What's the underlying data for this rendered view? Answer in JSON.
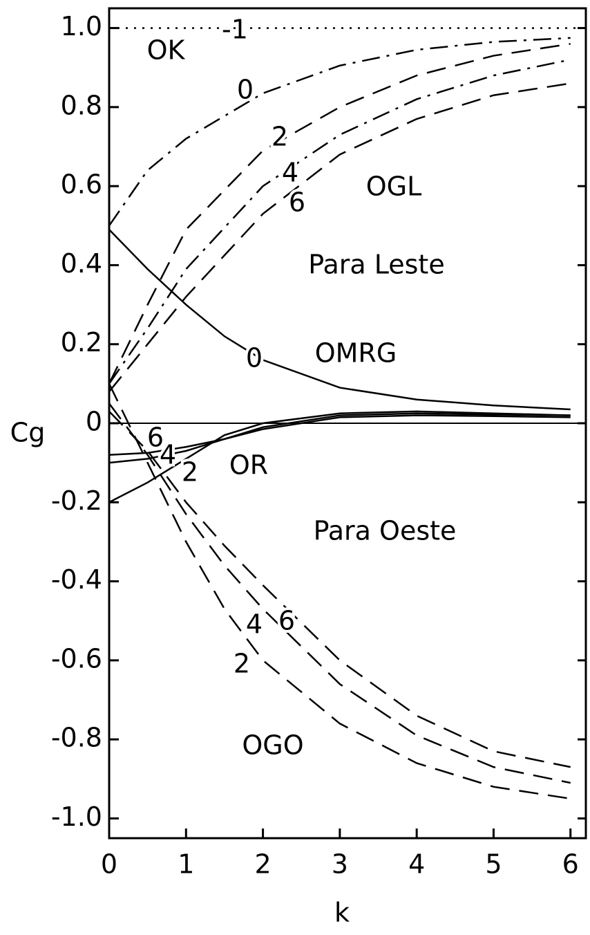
{
  "chart_data": {
    "type": "line",
    "xlabel": "k",
    "ylabel": "Cg",
    "xlim": [
      0,
      6.2
    ],
    "ylim": [
      -1.05,
      1.05
    ],
    "xticks": [
      0,
      1,
      2,
      3,
      4,
      5,
      6
    ],
    "yticks": [
      {
        "value": 1,
        "label": "1.0"
      },
      0.8,
      0.6,
      0.4,
      0.2,
      0,
      -0.2,
      -0.4,
      -0.6,
      -0.8,
      {
        "value": -1,
        "label": "-1.0"
      }
    ],
    "annotations": [
      "OK",
      "OGL",
      "Para Leste",
      "OMRG",
      "OR",
      "Para Oeste",
      "OGO"
    ],
    "series": [
      {
        "name": "-1",
        "color": "#000",
        "style": "dotted",
        "x": [
          0,
          6.2
        ],
        "values": [
          1,
          1
        ]
      },
      {
        "name": "0",
        "color": "#000",
        "style": "dashdot",
        "x": [
          0,
          0.5,
          1,
          2,
          3,
          4,
          5,
          6
        ],
        "values": [
          0.5,
          0.64,
          0.72,
          0.835,
          0.905,
          0.945,
          0.965,
          0.975
        ]
      },
      {
        "name": "2",
        "color": "#000",
        "style": "dashed",
        "x": [
          0,
          0.5,
          1,
          2,
          3,
          4,
          5,
          6
        ],
        "values": [
          0.1,
          0.3,
          0.49,
          0.69,
          0.8,
          0.88,
          0.93,
          0.96
        ]
      },
      {
        "name": "4",
        "color": "#000",
        "style": "dashdot",
        "x": [
          0,
          0.5,
          1,
          2,
          3,
          4,
          5,
          6
        ],
        "values": [
          0.1,
          0.24,
          0.39,
          0.6,
          0.73,
          0.82,
          0.88,
          0.92
        ]
      },
      {
        "name": "6",
        "color": "#000",
        "style": "dashed",
        "x": [
          0,
          0.5,
          1,
          2,
          3,
          4,
          5,
          6
        ],
        "values": [
          0.08,
          0.2,
          0.32,
          0.53,
          0.68,
          0.77,
          0.83,
          0.86
        ]
      },
      {
        "name": "0",
        "color": "#000",
        "style": "solid",
        "x": [
          0,
          0.5,
          1,
          1.5,
          2,
          3,
          4,
          5,
          6
        ],
        "values": [
          0.49,
          0.39,
          0.3,
          0.22,
          0.16,
          0.09,
          0.06,
          0.045,
          0.035
        ]
      },
      {
        "name": "2",
        "color": "#000",
        "style": "solid",
        "x": [
          0,
          0.5,
          1,
          1.5,
          2,
          3,
          4,
          5,
          6
        ],
        "values": [
          -0.2,
          -0.15,
          -0.09,
          -0.03,
          0,
          0.025,
          0.03,
          0.025,
          0.02
        ]
      },
      {
        "name": "4",
        "color": "#000",
        "style": "solid",
        "x": [
          0,
          0.5,
          1,
          1.5,
          2,
          3,
          4,
          5,
          6
        ],
        "values": [
          -0.1,
          -0.09,
          -0.07,
          -0.04,
          -0.01,
          0.02,
          0.025,
          0.022,
          0.02
        ]
      },
      {
        "name": "6",
        "color": "#000",
        "style": "solid",
        "x": [
          0,
          0.5,
          1,
          1.5,
          2,
          3,
          4,
          5,
          6
        ],
        "values": [
          -0.08,
          -0.075,
          -0.06,
          -0.04,
          -0.015,
          0.015,
          0.02,
          0.018,
          0.015
        ]
      },
      {
        "name": "2",
        "color": "#000",
        "style": "dashed",
        "x": [
          0,
          0.5,
          1,
          1.5,
          2,
          3,
          4,
          5,
          6
        ],
        "values": [
          0.1,
          -0.1,
          -0.3,
          -0.47,
          -0.6,
          -0.76,
          -0.86,
          -0.92,
          -0.95
        ]
      },
      {
        "name": "4",
        "color": "#000",
        "style": "dashed",
        "x": [
          0,
          0.5,
          1,
          1.5,
          2,
          3,
          4,
          5,
          6
        ],
        "values": [
          0.05,
          -0.08,
          -0.23,
          -0.36,
          -0.47,
          -0.66,
          -0.79,
          -0.87,
          -0.91
        ]
      },
      {
        "name": "6",
        "color": "#000",
        "style": "dashed",
        "x": [
          0,
          0.5,
          1,
          1.5,
          2,
          3,
          4,
          5,
          6
        ],
        "values": [
          0.03,
          -0.07,
          -0.2,
          -0.31,
          -0.41,
          -0.6,
          -0.74,
          -0.83,
          -0.87
        ]
      }
    ]
  }
}
